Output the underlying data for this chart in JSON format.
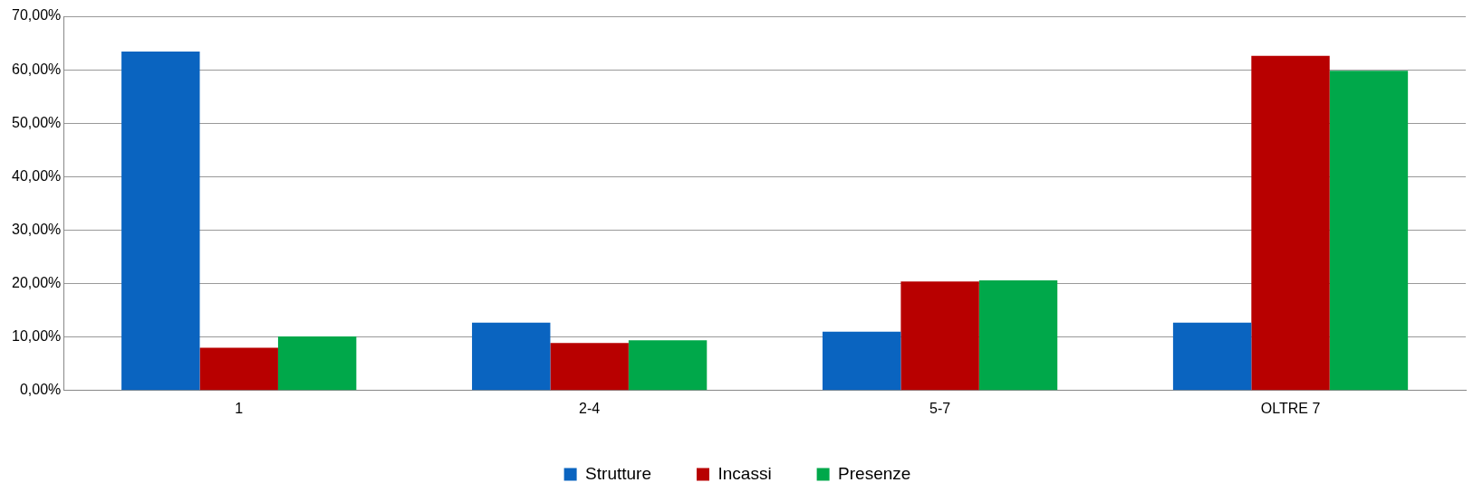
{
  "chart_data": {
    "type": "bar",
    "categories": [
      "1",
      "2-4",
      "5-7",
      "OLTRE 7"
    ],
    "series": [
      {
        "name": "Strutture",
        "color": "#0a64c0",
        "values": [
          63.4,
          12.7,
          11.0,
          12.7
        ]
      },
      {
        "name": "Incassi",
        "color": "#b80000",
        "values": [
          8.0,
          8.9,
          20.4,
          62.6
        ]
      },
      {
        "name": "Presenze",
        "color": "#00a84a",
        "values": [
          10.1,
          9.4,
          20.6,
          59.8
        ]
      }
    ],
    "ylim": [
      0,
      70
    ],
    "yticks": [
      {
        "value": 0,
        "label": "0,00%"
      },
      {
        "value": 10,
        "label": "10,00%"
      },
      {
        "value": 20,
        "label": "20,00%"
      },
      {
        "value": 30,
        "label": "30,00%"
      },
      {
        "value": 40,
        "label": "40,00%"
      },
      {
        "value": 50,
        "label": "50,00%"
      },
      {
        "value": 60,
        "label": "60,00%"
      },
      {
        "value": 70,
        "label": "70,00%"
      }
    ],
    "grid": "y",
    "legend": "bottom"
  }
}
